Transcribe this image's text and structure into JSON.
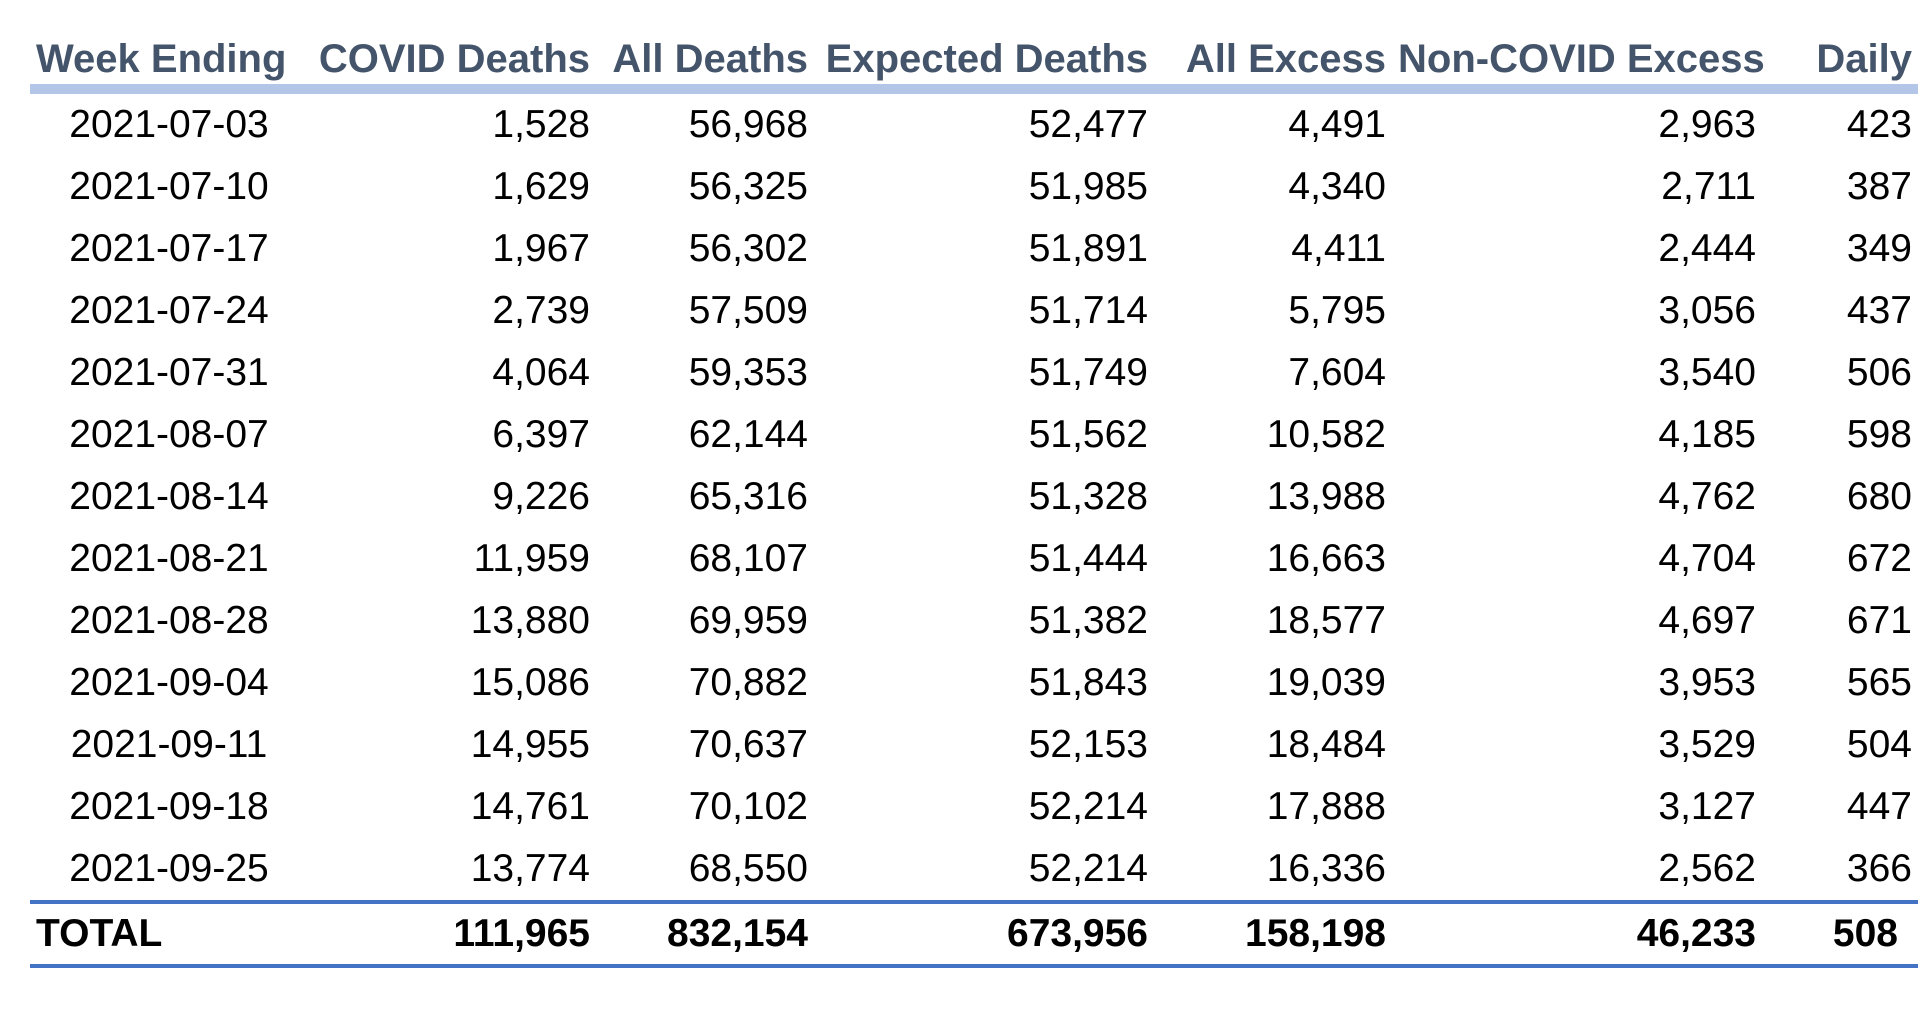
{
  "headers": [
    "Week Ending",
    "COVID Deaths",
    "All Deaths",
    "Expected Deaths",
    "All Excess",
    "Non-COVID Excess",
    "Daily"
  ],
  "rows": [
    [
      "2021-07-03",
      "1,528",
      "56,968",
      "52,477",
      "4,491",
      "2,963",
      "423"
    ],
    [
      "2021-07-10",
      "1,629",
      "56,325",
      "51,985",
      "4,340",
      "2,711",
      "387"
    ],
    [
      "2021-07-17",
      "1,967",
      "56,302",
      "51,891",
      "4,411",
      "2,444",
      "349"
    ],
    [
      "2021-07-24",
      "2,739",
      "57,509",
      "51,714",
      "5,795",
      "3,056",
      "437"
    ],
    [
      "2021-07-31",
      "4,064",
      "59,353",
      "51,749",
      "7,604",
      "3,540",
      "506"
    ],
    [
      "2021-08-07",
      "6,397",
      "62,144",
      "51,562",
      "10,582",
      "4,185",
      "598"
    ],
    [
      "2021-08-14",
      "9,226",
      "65,316",
      "51,328",
      "13,988",
      "4,762",
      "680"
    ],
    [
      "2021-08-21",
      "11,959",
      "68,107",
      "51,444",
      "16,663",
      "4,704",
      "672"
    ],
    [
      "2021-08-28",
      "13,880",
      "69,959",
      "51,382",
      "18,577",
      "4,697",
      "671"
    ],
    [
      "2021-09-04",
      "15,086",
      "70,882",
      "51,843",
      "19,039",
      "3,953",
      "565"
    ],
    [
      "2021-09-11",
      "14,955",
      "70,637",
      "52,153",
      "18,484",
      "3,529",
      "504"
    ],
    [
      "2021-09-18",
      "14,761",
      "70,102",
      "52,214",
      "17,888",
      "3,127",
      "447"
    ],
    [
      "2021-09-25",
      "13,774",
      "68,550",
      "52,214",
      "16,336",
      "2,562",
      "366"
    ]
  ],
  "total": [
    "TOTAL",
    "111,965",
    "832,154",
    "673,956",
    "158,198",
    "46,233",
    "508"
  ],
  "colors": {
    "header_text": "#44546a",
    "header_rule": "#b4c6e7",
    "total_rule": "#4472c4"
  }
}
